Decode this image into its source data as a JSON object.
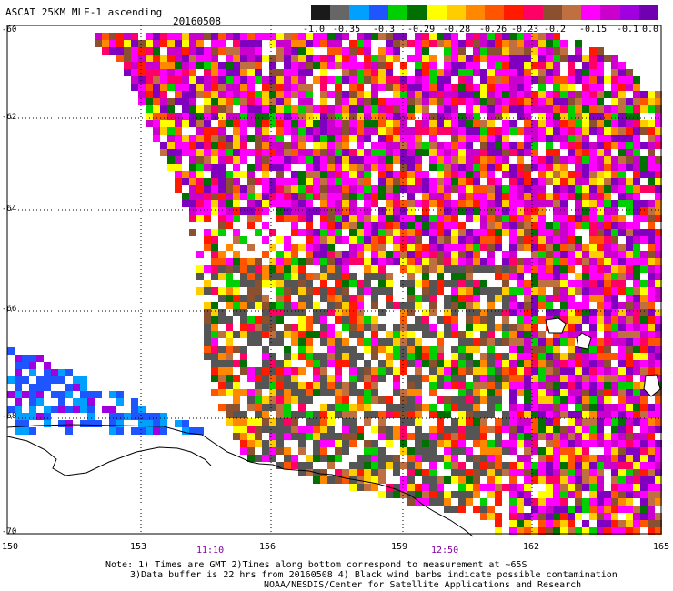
{
  "header": {
    "title": "ASCAT 25KM MLE-1 ascending",
    "date": "20160508"
  },
  "legend": {
    "colors": [
      "#1a1a1a",
      "#666666",
      "#00a0ff",
      "#1f55ff",
      "#00d000",
      "#007000",
      "#ffff00",
      "#ffcc00",
      "#ff8800",
      "#ff5500",
      "#ff1a00",
      "#ff0066",
      "#8a5030",
      "#c07040",
      "#ff00ff",
      "#cc00cc",
      "#a000e0",
      "#7000b0"
    ],
    "labels": [
      "-1.0",
      "-0.35",
      "-0.3",
      "-0.29",
      "-0.28",
      "-0.26",
      "-0.23",
      "-0.2",
      "-0.15",
      "-0.1",
      "0.0"
    ]
  },
  "axes": {
    "lat_labels": [
      "-60",
      "-62",
      "-64",
      "-66",
      "-68",
      "-70"
    ],
    "lon_labels": [
      "150",
      "153",
      "156",
      "159",
      "162",
      "165"
    ],
    "time_labels": [
      "11:10",
      "12:50"
    ]
  },
  "notes": {
    "line1": "Note: 1) Times are GMT 2)Times along bottom correspond to measurement at ~65S",
    "line2": "3)Data buffer is 22 hrs from 20160508 4) Black wind barbs indicate possible contamination",
    "line3": "NOAA/NESDIS/Center for Satellite Applications and Research"
  }
}
